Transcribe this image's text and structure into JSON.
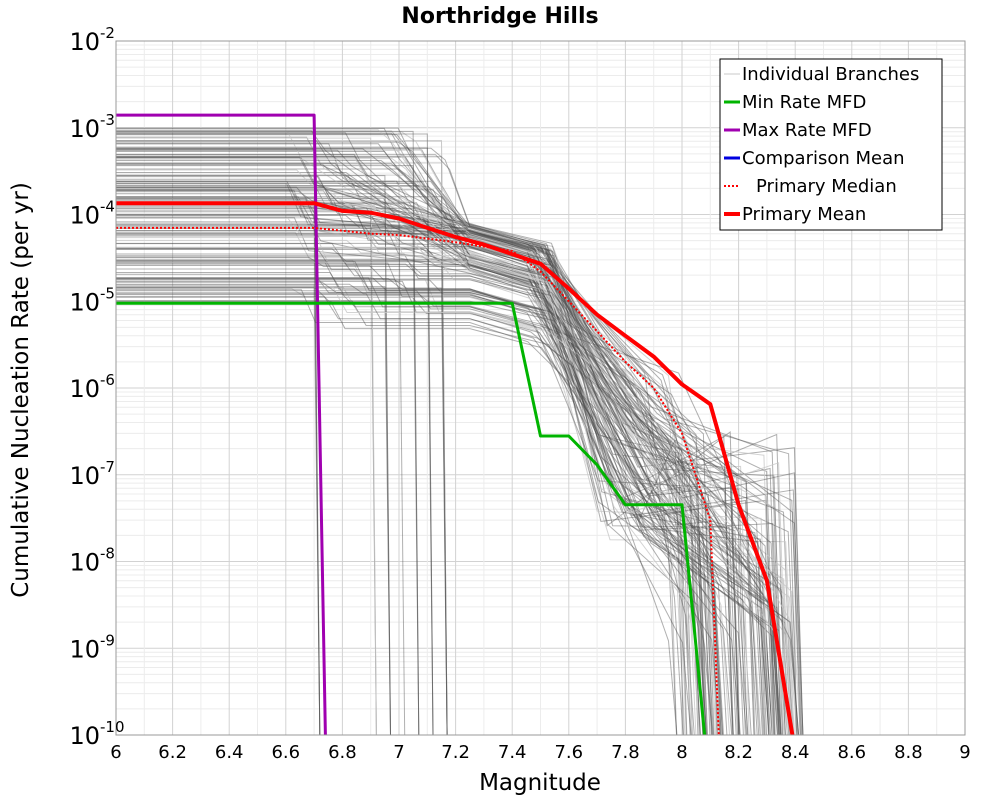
{
  "chart_data": {
    "type": "line",
    "title": "Northridge Hills",
    "xlabel": "Magnitude",
    "ylabel": "Cumulative Nucleation Rate (per yr)",
    "xlim": [
      6,
      9
    ],
    "ylim": [
      1e-10,
      0.01
    ],
    "yscale": "log",
    "x_ticks": [
      "6",
      "6.2",
      "6.4",
      "6.6",
      "6.8",
      "7",
      "7.2",
      "7.4",
      "7.6",
      "7.8",
      "8",
      "8.2",
      "8.4",
      "8.6",
      "8.8",
      "9"
    ],
    "y_ticks": [
      {
        "base": "10",
        "exp": "-2",
        "value": 0.01
      },
      {
        "base": "10",
        "exp": "-3",
        "value": 0.001
      },
      {
        "base": "10",
        "exp": "-4",
        "value": 0.0001
      },
      {
        "base": "10",
        "exp": "-5",
        "value": 1e-05
      },
      {
        "base": "10",
        "exp": "-6",
        "value": 1e-06
      },
      {
        "base": "10",
        "exp": "-7",
        "value": 1e-07
      },
      {
        "base": "10",
        "exp": "-8",
        "value": 1e-08
      },
      {
        "base": "10",
        "exp": "-9",
        "value": 1e-09
      },
      {
        "base": "10",
        "exp": "-10",
        "value": 1e-10
      }
    ],
    "grid": true,
    "legend_position": "top-right",
    "series": [
      {
        "name": "Min Rate MFD",
        "color": "#00b400",
        "style": "solid",
        "x": [
          6.0,
          7.4,
          7.5,
          7.6,
          7.7,
          7.8,
          8.0,
          8.05,
          8.08
        ],
        "y": [
          9.5e-06,
          9.5e-06,
          2.8e-07,
          2.8e-07,
          1.3e-07,
          4.5e-08,
          4.5e-08,
          1e-09,
          1e-10
        ]
      },
      {
        "name": "Max Rate MFD",
        "color": "#a000b0",
        "style": "solid",
        "x": [
          6.0,
          6.7,
          6.74
        ],
        "y": [
          0.0014,
          0.0014,
          1e-10
        ]
      },
      {
        "name": "Comparison Mean",
        "color": "#0000e0",
        "style": "solid",
        "x": [],
        "y": []
      },
      {
        "name": "Primary Median",
        "color": "#ff0000",
        "style": "dotted",
        "x": [
          6.0,
          6.7,
          6.8,
          6.9,
          7.0,
          7.2,
          7.4,
          7.5,
          7.6,
          7.7,
          7.8,
          7.9,
          8.0,
          8.1,
          8.13
        ],
        "y": [
          7e-05,
          7e-05,
          6.5e-05,
          6e-05,
          5.8e-05,
          4.8e-05,
          3.8e-05,
          2.2e-05,
          1e-05,
          4.5e-06,
          2e-06,
          1e-06,
          3e-07,
          3e-08,
          1e-10
        ]
      },
      {
        "name": "Primary Mean",
        "color": "#ff0000",
        "style": "solid-thick",
        "x": [
          6.0,
          6.7,
          6.8,
          6.9,
          7.0,
          7.1,
          7.2,
          7.3,
          7.4,
          7.5,
          7.6,
          7.7,
          7.8,
          7.9,
          8.0,
          8.1,
          8.2,
          8.3,
          8.39
        ],
        "y": [
          0.000135,
          0.000135,
          0.00011,
          0.000105,
          9e-05,
          7e-05,
          5.5e-05,
          4.5e-05,
          3.5e-05,
          2.7e-05,
          1.4e-05,
          7e-06,
          4e-06,
          2.3e-06,
          1.1e-06,
          6.5e-07,
          4.5e-08,
          6e-09,
          1e-10
        ]
      }
    ],
    "individual_branches": {
      "name": "Individual Branches",
      "color": "#505050",
      "light_color": "#c8c8c8"
    }
  }
}
